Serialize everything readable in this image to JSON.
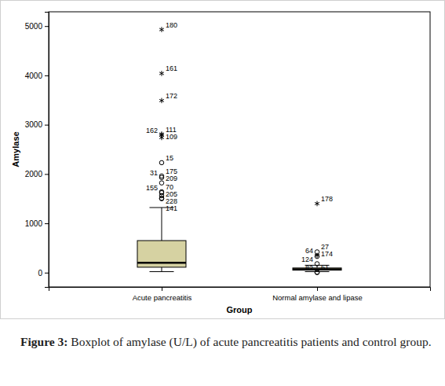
{
  "chart_data": {
    "type": "box",
    "figure_label": "Figure 3:",
    "title": "Boxplot of amylase (U/L) of acute pancreatitis patients and control group.",
    "x_label": "Group",
    "y_label": "Amylase",
    "categories": [
      "Acute pancreatitis",
      "Normal amylase and lipase"
    ],
    "color": "#d6d2a2",
    "ylim": [
      -290,
      5290
    ],
    "yticks": [
      0,
      1000,
      2000,
      3000,
      4000,
      5000
    ],
    "boxes": [
      {
        "low": 20,
        "q1": 110,
        "median": 200,
        "q3": 650,
        "high": 1320,
        "outliers": [
          {
            "value": 4930,
            "label": "180",
            "marker": "star"
          },
          {
            "value": 4040,
            "label": "161",
            "marker": "star"
          },
          {
            "value": 3490,
            "label": "172",
            "marker": "star"
          },
          {
            "value": 2810,
            "label": "111",
            "marker": "star"
          },
          {
            "value": 2790,
            "label": "162",
            "marker": "star"
          },
          {
            "value": 2740,
            "label": "109",
            "marker": "star"
          },
          {
            "value": 2230,
            "label": "15",
            "marker": "circle"
          },
          {
            "value": 1960,
            "label": "175",
            "marker": "circle"
          },
          {
            "value": 1930,
            "label": "31",
            "marker": "circle"
          },
          {
            "value": 1820,
            "label": "209",
            "marker": "circle"
          },
          {
            "value": 1640,
            "label": "70",
            "marker": "circle"
          },
          {
            "value": 1620,
            "label": "155",
            "marker": "circle"
          },
          {
            "value": 1560,
            "label": "205",
            "marker": "circle"
          },
          {
            "value": 1510,
            "label": "228",
            "marker": "circle"
          },
          {
            "value": 1500,
            "label": "141",
            "marker": "circle"
          }
        ]
      },
      {
        "low": 20,
        "q1": 50,
        "median": 70,
        "q3": 95,
        "high": 150,
        "outliers": [
          {
            "value": 1400,
            "label": "178",
            "marker": "star"
          },
          {
            "value": 420,
            "label": "27",
            "marker": "circle"
          },
          {
            "value": 350,
            "label": "64",
            "marker": "star"
          },
          {
            "value": 330,
            "label": "174",
            "marker": "circle"
          },
          {
            "value": 180,
            "label": "124",
            "marker": "circle"
          },
          {
            "value": 8,
            "label": "61",
            "marker": "circle"
          },
          {
            "value": 3,
            "label": "82",
            "marker": "circle"
          }
        ]
      }
    ]
  }
}
